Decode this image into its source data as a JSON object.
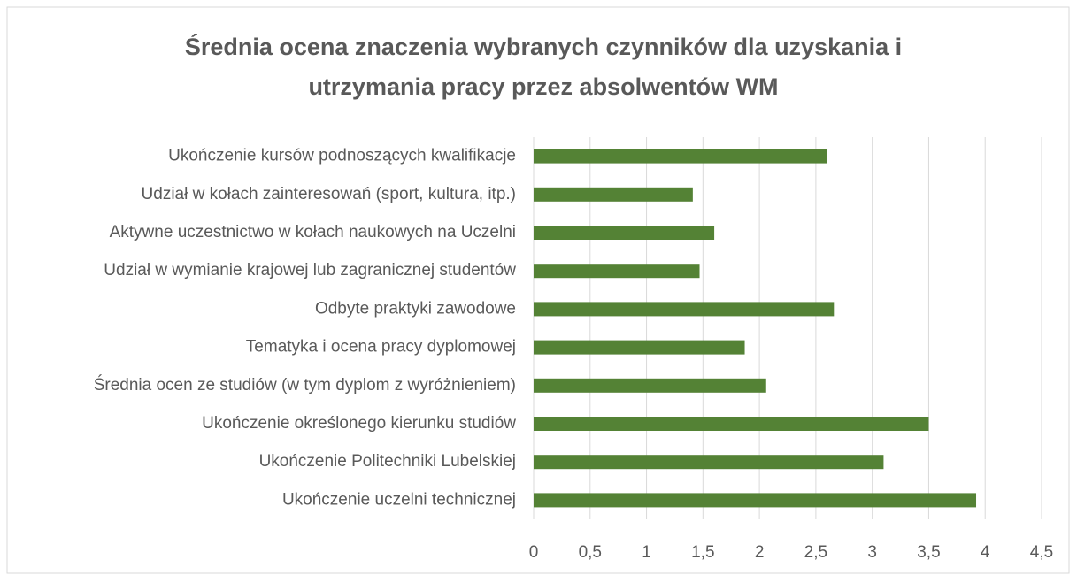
{
  "chart_data": {
    "type": "barh",
    "title": [
      "Średnia ocena znaczenia wybranych czynników dla uzyskania i",
      "utrzymania pracy przez absolwentów WM"
    ],
    "categories": [
      "Ukończenie kursów podnoszących kwalifikacje",
      "Udział w kołach zainteresowań (sport, kultura, itp.)",
      "Aktywne uczestnictwo w kołach naukowych na Uczelni",
      "Udział w wymianie krajowej lub zagranicznej studentów",
      "Odbyte praktyki zawodowe",
      "Tematyka i ocena pracy dyplomowej",
      "Średnia ocen ze studiów (w tym dyplom z wyróżnieniem)",
      "Ukończenie określonego kierunku studiów",
      "Ukończenie Politechniki Lubelskiej",
      "Ukończenie uczelni technicznej"
    ],
    "values": [
      2.6,
      1.41,
      1.6,
      1.47,
      2.66,
      1.87,
      2.06,
      3.5,
      3.1,
      3.92
    ],
    "color": "#548235",
    "xlim": [
      0,
      4.5
    ],
    "xticks": [
      0,
      {
        "value": 0.5,
        "label": "0,5"
      },
      1,
      {
        "value": 1.5,
        "label": "1,5"
      },
      2,
      {
        "value": 2.5,
        "label": "2,5"
      },
      3,
      {
        "value": 3.5,
        "label": "3,5"
      },
      4,
      {
        "value": 4.5,
        "label": "4,5"
      }
    ],
    "grid": true
  }
}
